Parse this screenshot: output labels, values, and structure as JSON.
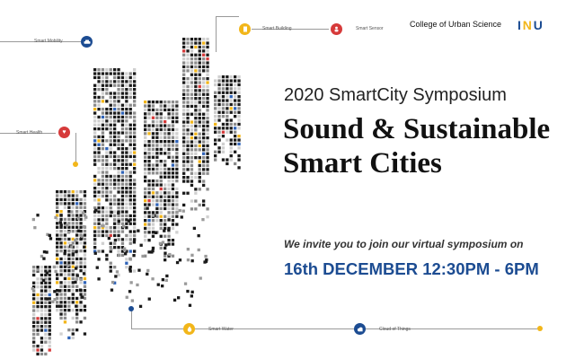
{
  "header": {
    "college": "College of Urban Science",
    "logo_letters": [
      "I",
      "N",
      "U"
    ]
  },
  "event": {
    "subtitle": "2020 SmartCity Symposium",
    "title_line1": "Sound & Sustainable",
    "title_line2": "Smart Cities",
    "invite": "We invite you to join our virtual symposium on",
    "date": "16th DECEMBER 12:30PM - 6PM"
  },
  "tags": {
    "smart_mobility": "Smart Mobility",
    "smart_health": "Smart Health",
    "smart_building": "Smart Building",
    "smart_sensor": "Smart Sensor",
    "smart_water": "Smart Water",
    "cloud_of_things": "Cloud of Things"
  },
  "icons": {
    "smart_mobility": "car-icon",
    "smart_health": "heart-icon",
    "smart_building": "building-icon",
    "smart_sensor": "person-icon",
    "smart_water": "water-drop-icon",
    "cloud_of_things": "cloud-icon"
  },
  "colors": {
    "navy": "#1c4c92",
    "red": "#d63a3a",
    "yellow": "#f2b61a",
    "blue_accent": "#2f63b8",
    "building_dark": "#1a1a1a"
  }
}
